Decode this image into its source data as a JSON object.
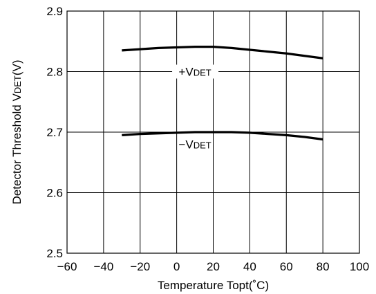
{
  "chart_data": {
    "type": "line",
    "title": "",
    "xlabel": "Temperature Topt(˚C)",
    "ylabel_main": "Detector Threshold V",
    "ylabel_sub": "DET",
    "ylabel_unit": "(V)",
    "xlim": [
      -60,
      100
    ],
    "ylim": [
      2.5,
      2.9
    ],
    "x_ticks": [
      "−60",
      "−40",
      "−20",
      "0",
      "20",
      "40",
      "60",
      "80",
      "100"
    ],
    "y_ticks": [
      "2.5",
      "2.6",
      "2.7",
      "2.8",
      "2.9"
    ],
    "grid": true,
    "series": [
      {
        "name_main": "+V",
        "name_sub": "DET",
        "x": [
          -30,
          -20,
          -10,
          0,
          10,
          20,
          30,
          40,
          50,
          60,
          70,
          80
        ],
        "y": [
          2.835,
          2.837,
          2.839,
          2.84,
          2.841,
          2.841,
          2.839,
          2.836,
          2.833,
          2.83,
          2.826,
          2.822
        ]
      },
      {
        "name_main": "−V",
        "name_sub": "DET",
        "x": [
          -30,
          -20,
          -10,
          0,
          10,
          20,
          30,
          40,
          50,
          60,
          70,
          80
        ],
        "y": [
          2.695,
          2.697,
          2.698,
          2.699,
          2.7,
          2.7,
          2.7,
          2.699,
          2.697,
          2.695,
          2.692,
          2.688
        ]
      }
    ]
  }
}
